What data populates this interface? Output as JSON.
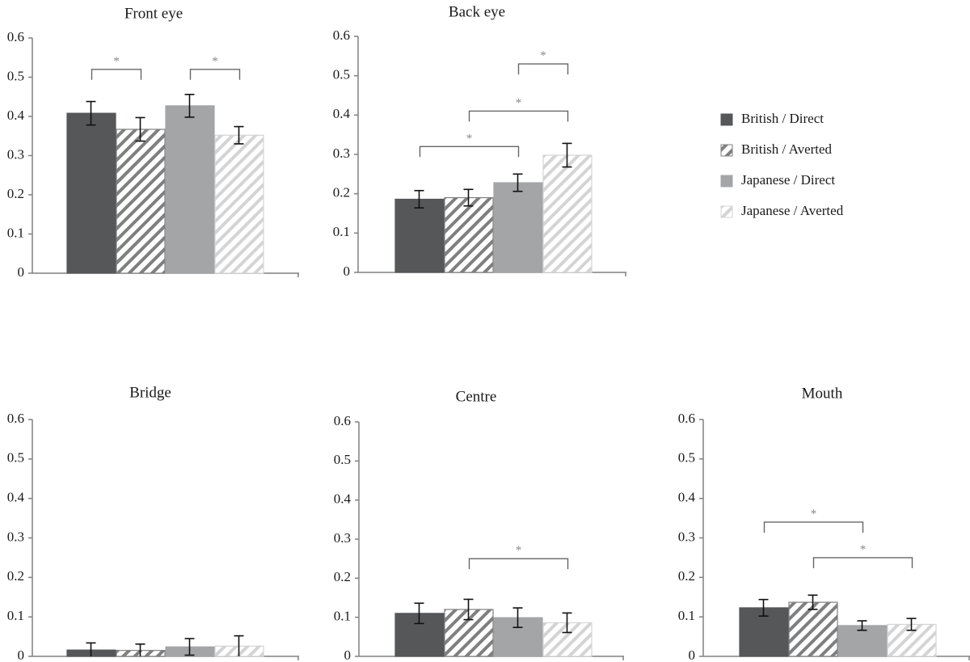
{
  "chart_data": {
    "type": "bar",
    "legend": {
      "placement": "right of top row",
      "entries": [
        {
          "label": "British / Direct",
          "color": "#555759",
          "pattern": "solid"
        },
        {
          "label": "British / Averted",
          "color": "#7f7f7f",
          "pattern": "hatched"
        },
        {
          "label": "Japanese / Direct",
          "color": "#a3a5a7",
          "pattern": "solid"
        },
        {
          "label": "Japanese / Averted",
          "color": "#d4d4d4",
          "pattern": "hatched"
        }
      ]
    },
    "series_names": [
      "British / Direct",
      "British / Averted",
      "Japanese / Direct",
      "Japanese / Averted"
    ],
    "panels": [
      {
        "title": "Front eye",
        "ylim": [
          0,
          0.6
        ],
        "yticks": [
          "0",
          "0.1",
          "0.2",
          "0.3",
          "0.4",
          "0.5",
          "0.6"
        ],
        "values": [
          0.408,
          0.367,
          0.427,
          0.352
        ],
        "errors": [
          0.03,
          0.03,
          0.029,
          0.022
        ],
        "significance": [
          {
            "from": 0,
            "to": 1,
            "level": 0.52,
            "label": "*"
          },
          {
            "from": 2,
            "to": 3,
            "level": 0.52,
            "label": "*"
          }
        ]
      },
      {
        "title": "Back eye",
        "ylim": [
          0,
          0.6
        ],
        "yticks": [
          "0",
          "0.1",
          "0.2",
          "0.3",
          "0.4",
          "0.5",
          "0.6"
        ],
        "values": [
          0.186,
          0.19,
          0.228,
          0.298
        ],
        "errors": [
          0.022,
          0.021,
          0.022,
          0.03
        ],
        "significance": [
          {
            "from": 0,
            "to": 2,
            "level": 0.32,
            "label": "*"
          },
          {
            "from": 1,
            "to": 3,
            "level": 0.41,
            "label": "*"
          },
          {
            "from": 2,
            "to": 3,
            "level": 0.53,
            "label": "*"
          }
        ]
      },
      {
        "title": "Bridge",
        "ylim": [
          0,
          0.6
        ],
        "yticks": [
          "0",
          "0.1",
          "0.2",
          "0.3",
          "0.4",
          "0.5",
          "0.6"
        ],
        "values": [
          0.016,
          0.015,
          0.024,
          0.026
        ],
        "errors": [
          0.018,
          0.016,
          0.021,
          0.026
        ],
        "significance": []
      },
      {
        "title": "Centre",
        "ylim": [
          0,
          0.6
        ],
        "yticks": [
          "0",
          "0.1",
          "0.2",
          "0.3",
          "0.4",
          "0.5",
          "0.6"
        ],
        "values": [
          0.11,
          0.12,
          0.099,
          0.086
        ],
        "errors": [
          0.026,
          0.026,
          0.025,
          0.025
        ],
        "significance": [
          {
            "from": 1,
            "to": 3,
            "level": 0.25,
            "label": "*"
          }
        ]
      },
      {
        "title": "Mouth",
        "ylim": [
          0,
          0.6
        ],
        "yticks": [
          "0",
          "0.1",
          "0.2",
          "0.3",
          "0.4",
          "0.5",
          "0.6"
        ],
        "values": [
          0.123,
          0.137,
          0.078,
          0.081
        ],
        "errors": [
          0.021,
          0.018,
          0.012,
          0.015
        ],
        "significance": [
          {
            "from": 0,
            "to": 2,
            "level": 0.34,
            "label": "*"
          },
          {
            "from": 1,
            "to": 3,
            "level": 0.25,
            "label": "*"
          }
        ]
      }
    ]
  }
}
